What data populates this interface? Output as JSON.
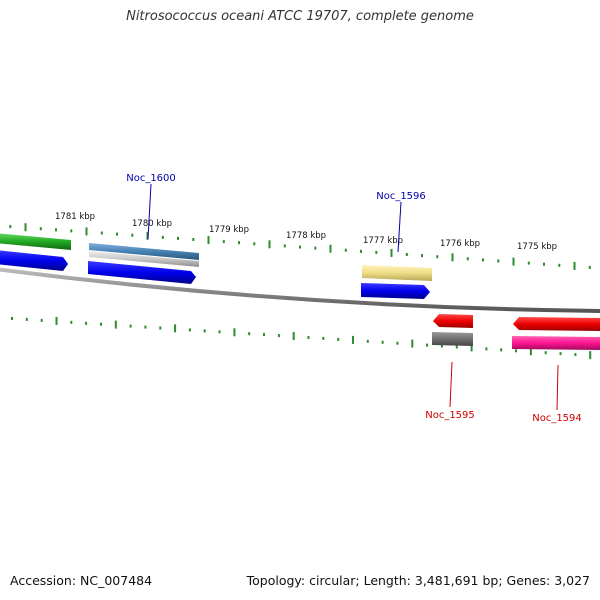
{
  "title": "Nitrosococcus oceani ATCC 19707, complete genome",
  "footer": {
    "accession": "Accession: NC_007484",
    "summary": "Topology: circular; Length: 3,481,691 bp; Genes: 3,027"
  },
  "ticks": [
    {
      "label": "1781 kbp"
    },
    {
      "label": "1780 kbp"
    },
    {
      "label": "1779 kbp"
    },
    {
      "label": "1778 kbp"
    },
    {
      "label": "1777 kbp"
    },
    {
      "label": "1776 kbp"
    },
    {
      "label": "1775 kbp"
    }
  ],
  "gene_labels": [
    {
      "name": "Noc_1600",
      "color": "#0000aa"
    },
    {
      "name": "Noc_1596",
      "color": "#0000aa"
    },
    {
      "name": "Noc_1595",
      "color": "#cc0000"
    },
    {
      "name": "Noc_1594",
      "color": "#cc0000"
    }
  ],
  "colors": {
    "backbone": "#8a8a8a",
    "tick": "#2e8b2e",
    "cds_forward": "#0000ee",
    "cds_reverse": "#ee0000",
    "rna_like": "#ff1493",
    "pseudo": "#707070",
    "cog_green": "#22aa22",
    "cog_steelblue": "#4682b4",
    "cog_khaki": "#eedd88",
    "cog_silver": "#c8c8c8"
  }
}
